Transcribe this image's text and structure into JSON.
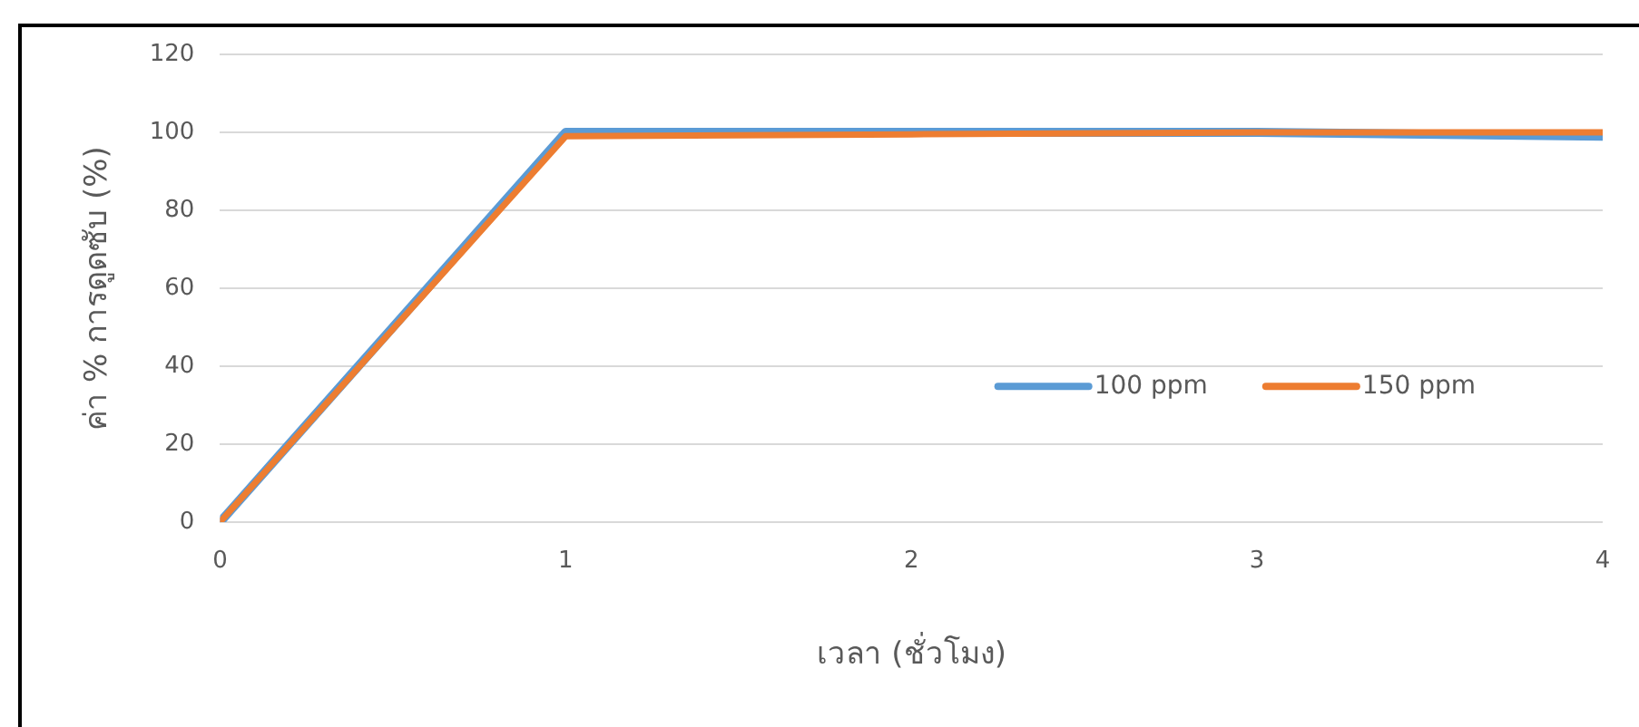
{
  "chart_data": {
    "type": "line",
    "xlabel": "เวลา (ชั่วโมง)",
    "ylabel": "ค่า % การดูดซับ (%)",
    "x": [
      0,
      1,
      2,
      3,
      4
    ],
    "series": [
      {
        "name": "100 ppm",
        "color": "#5b9bd5",
        "values": [
          0,
          100,
          100,
          100,
          99
        ]
      },
      {
        "name": "150 ppm",
        "color": "#ed7d31",
        "values": [
          0,
          99,
          99.5,
          100,
          100
        ]
      }
    ],
    "xlim": [
      0,
      4
    ],
    "xticks": [
      0,
      1,
      2,
      3,
      4
    ],
    "ylim": [
      0,
      120
    ],
    "yticks": [
      0,
      20,
      40,
      60,
      80,
      100,
      120
    ],
    "grid": "y",
    "legend": "right",
    "marker": "none",
    "line_style": "solid"
  }
}
